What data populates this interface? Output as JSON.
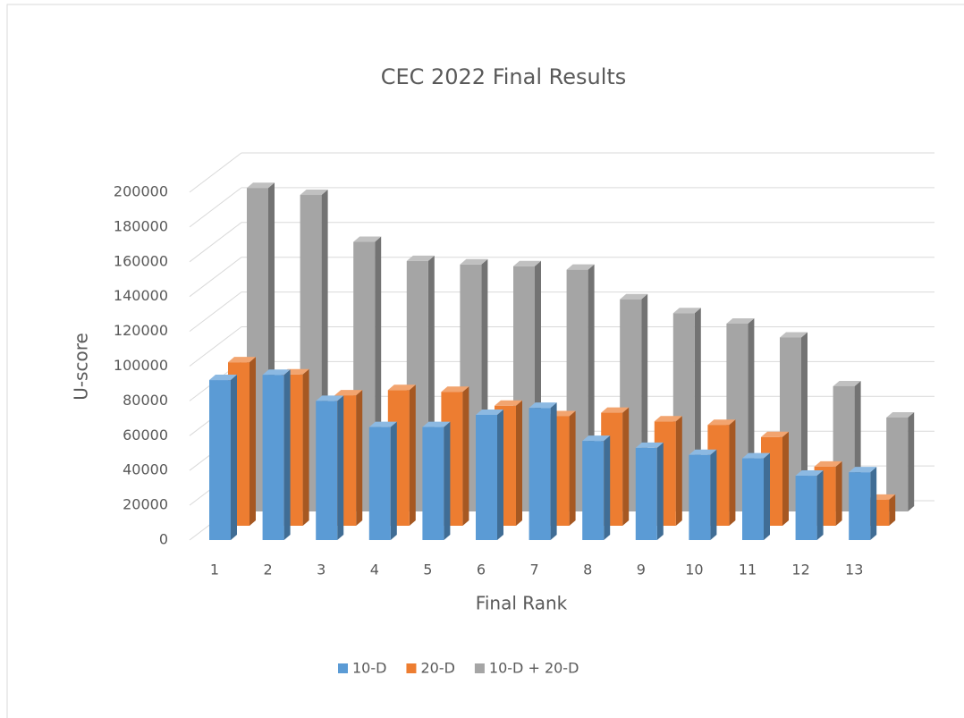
{
  "chart_data": {
    "type": "bar3d",
    "title": "CEC 2022 Final Results",
    "x_label": "Final Rank",
    "y_label": "U-score",
    "categories": [
      "1",
      "2",
      "3",
      "4",
      "5",
      "6",
      "7",
      "8",
      "9",
      "10",
      "11",
      "12",
      "13"
    ],
    "series": [
      {
        "name": "10-D",
        "color": "#5b9bd5",
        "values": [
          92000,
          95000,
          80000,
          65000,
          65000,
          72000,
          76000,
          57000,
          53000,
          49000,
          47000,
          37000,
          39000
        ]
      },
      {
        "name": "20-D",
        "color": "#ed7d31",
        "values": [
          94000,
          87000,
          75000,
          78000,
          77000,
          69000,
          63000,
          65000,
          60000,
          58000,
          51000,
          34000,
          15000
        ]
      },
      {
        "name": "10-D + 20-D",
        "color": "#a5a5a5",
        "values": [
          186000,
          182000,
          155000,
          144000,
          142000,
          141000,
          139000,
          122000,
          114000,
          108000,
          100000,
          72000,
          54000
        ]
      }
    ],
    "ylim": [
      0,
      200000
    ],
    "yticks": [
      0,
      20000,
      40000,
      60000,
      80000,
      100000,
      120000,
      140000,
      160000,
      180000,
      200000
    ],
    "grid": true,
    "legend": "bottom"
  }
}
